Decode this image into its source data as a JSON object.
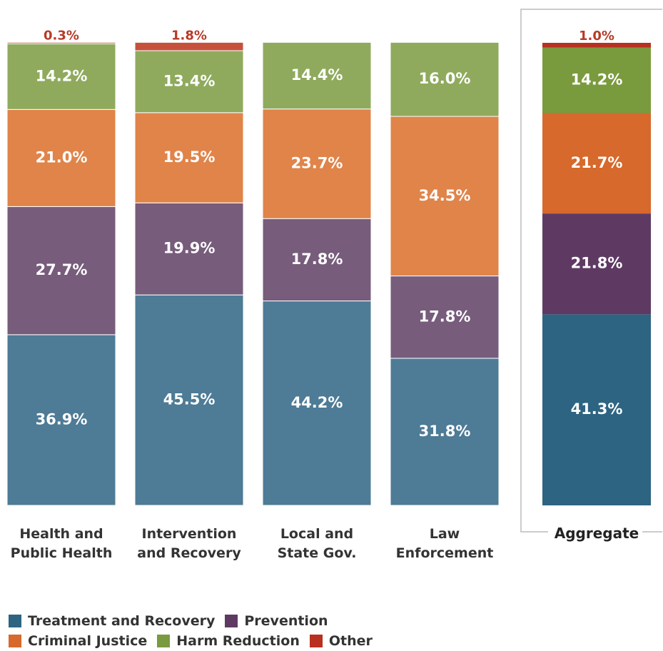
{
  "chart_data": {
    "type": "bar",
    "stacked": true,
    "categories": [
      [
        "Health and",
        "Public Health"
      ],
      [
        "Intervention",
        "and Recovery"
      ],
      [
        "Local and",
        "State Gov."
      ],
      [
        "Law",
        "Enforcement"
      ],
      [
        "Aggregate"
      ]
    ],
    "series": [
      {
        "name": "Treatment and Recovery",
        "values": [
          36.9,
          45.5,
          44.2,
          31.8,
          41.3
        ],
        "color": "#4e7b96",
        "aggregate_color": "#2d6482"
      },
      {
        "name": "Prevention",
        "values": [
          27.7,
          19.9,
          17.8,
          17.8,
          21.8
        ],
        "color": "#775c7c",
        "aggregate_color": "#5e3a63"
      },
      {
        "name": "Criminal Justice",
        "values": [
          21.0,
          19.5,
          23.7,
          34.5,
          21.7
        ],
        "color": "#e0844a",
        "aggregate_color": "#d6692b"
      },
      {
        "name": "Harm Reduction",
        "values": [
          14.2,
          13.4,
          14.4,
          16.0,
          14.2
        ],
        "color": "#8faa5d",
        "aggregate_color": "#7a9a3e"
      },
      {
        "name": "Other",
        "values": [
          0.3,
          1.8,
          0.0,
          0.0,
          1.0
        ],
        "color": "#c5513d",
        "aggregate_color": "#b8301f"
      }
    ],
    "data_labels": [
      [
        "36.9%",
        "27.7%",
        "21.0%",
        "14.2%",
        "0.3%"
      ],
      [
        "45.5%",
        "19.9%",
        "19.5%",
        "13.4%",
        "1.8%"
      ],
      [
        "44.2%",
        "17.8%",
        "23.7%",
        "14.4%",
        ""
      ],
      [
        "31.8%",
        "17.8%",
        "34.5%",
        "16.0%",
        ""
      ],
      [
        "41.3%",
        "21.8%",
        "21.7%",
        "14.2%",
        "1.0%"
      ]
    ],
    "ylim": [
      0,
      100
    ],
    "legend_position": "bottom-left",
    "legend_rows": [
      [
        "Treatment and Recovery",
        "Prevention"
      ],
      [
        "Criminal Justice",
        "Harm Reduction",
        "Other"
      ]
    ]
  }
}
